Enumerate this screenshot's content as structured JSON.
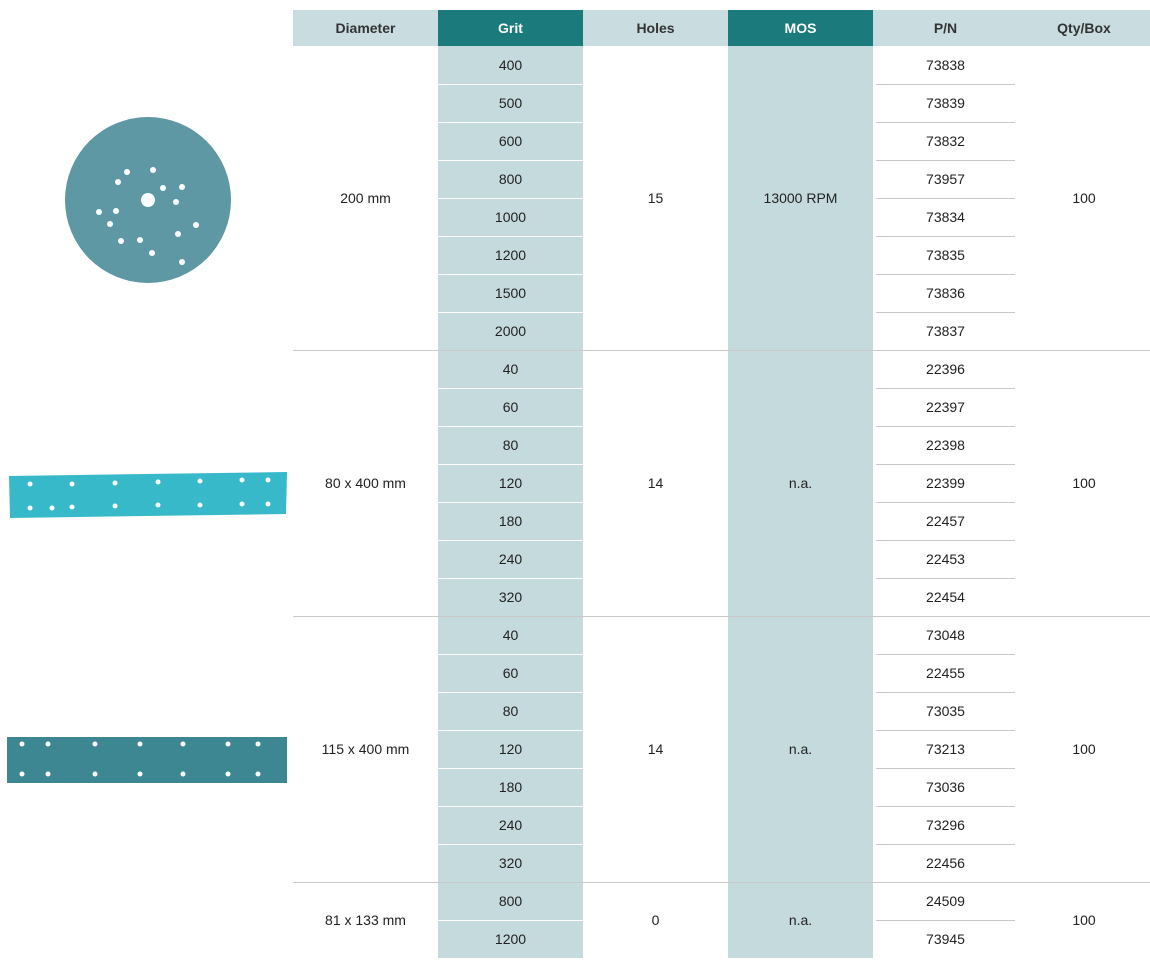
{
  "header": {
    "columns": [
      "Diameter",
      "Grit",
      "Holes",
      "MOS",
      "P/N",
      "Qty/Box"
    ]
  },
  "groups": [
    {
      "diameter": "200 mm",
      "holes": "15",
      "mos": "13000 RPM",
      "qty": "100",
      "rows": [
        {
          "grit": "400",
          "pn": "73838"
        },
        {
          "grit": "500",
          "pn": "73839"
        },
        {
          "grit": "600",
          "pn": "73832"
        },
        {
          "grit": "800",
          "pn": "73957"
        },
        {
          "grit": "1000",
          "pn": "73834"
        },
        {
          "grit": "1200",
          "pn": "73835"
        },
        {
          "grit": "1500",
          "pn": "73836"
        },
        {
          "grit": "2000",
          "pn": "73837"
        }
      ]
    },
    {
      "diameter": "80 x 400 mm",
      "holes": "14",
      "mos": "n.a.",
      "qty": "100",
      "rows": [
        {
          "grit": "40",
          "pn": "22396"
        },
        {
          "grit": "60",
          "pn": "22397"
        },
        {
          "grit": "80",
          "pn": "22398"
        },
        {
          "grit": "120",
          "pn": "22399"
        },
        {
          "grit": "180",
          "pn": "22457"
        },
        {
          "grit": "240",
          "pn": "22453"
        },
        {
          "grit": "320",
          "pn": "22454"
        }
      ]
    },
    {
      "diameter": "115 x 400 mm",
      "holes": "14",
      "mos": "n.a.",
      "qty": "100",
      "rows": [
        {
          "grit": "40",
          "pn": "73048"
        },
        {
          "grit": "60",
          "pn": "22455"
        },
        {
          "grit": "80",
          "pn": "73035"
        },
        {
          "grit": "120",
          "pn": "73213"
        },
        {
          "grit": "180",
          "pn": "73036"
        },
        {
          "grit": "240",
          "pn": "73296"
        },
        {
          "grit": "320",
          "pn": "22456"
        }
      ]
    },
    {
      "diameter": "81 x 133 mm",
      "holes": "0",
      "mos": "n.a.",
      "qty": "100",
      "rows": [
        {
          "grit": "800",
          "pn": "24509"
        },
        {
          "grit": "1200",
          "pn": "73945"
        }
      ]
    }
  ]
}
